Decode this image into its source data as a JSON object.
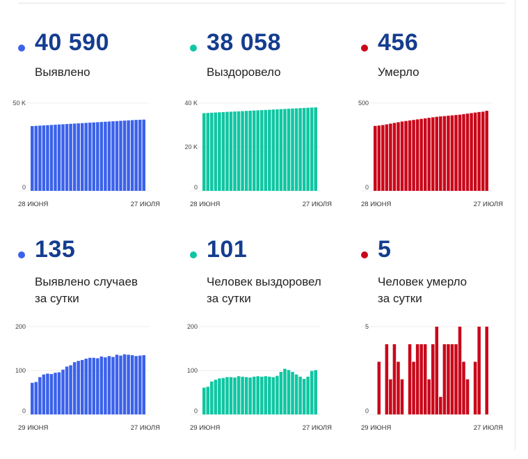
{
  "cards": [
    {
      "value": "40 590",
      "label1": "Выявлено",
      "label2": "",
      "color": "#3b62ea"
    },
    {
      "value": "38 058",
      "label1": "Выздоровело",
      "label2": "",
      "color": "#0fc6a2"
    },
    {
      "value": "456",
      "label1": "Умерло",
      "label2": "",
      "color": "#c9081a"
    },
    {
      "value": "135",
      "label1": "Выявлено случаев",
      "label2": "за сутки",
      "color": "#3b62ea"
    },
    {
      "value": "101",
      "label1": "Человек выздоровел",
      "label2": "за сутки",
      "color": "#0fc6a2"
    },
    {
      "value": "5",
      "label1": "Человек умерло",
      "label2": "за сутки",
      "color": "#c9081a"
    }
  ],
  "chart_data": [
    {
      "type": "bar",
      "color": "#3b62ea",
      "x_start_label": "28 июня",
      "x_end_label": "27 июля",
      "yticks": [
        {
          "v": 0,
          "label": "0"
        },
        {
          "v": 50000,
          "label": "50 K"
        }
      ],
      "ylim": [
        0,
        50000
      ],
      "values": [
        36900,
        37030,
        37160,
        37290,
        37420,
        37550,
        37680,
        37810,
        37940,
        38070,
        38200,
        38330,
        38460,
        38590,
        38720,
        38850,
        38980,
        39110,
        39240,
        39370,
        39500,
        39630,
        39760,
        39890,
        40020,
        40150,
        40280,
        40410,
        40500,
        40590
      ]
    },
    {
      "type": "bar",
      "color": "#0fc6a2",
      "x_start_label": "28 июня",
      "x_end_label": "27 июля",
      "yticks": [
        {
          "v": 0,
          "label": "0"
        },
        {
          "v": 20000,
          "label": "20 K"
        },
        {
          "v": 40000,
          "label": "40 K"
        }
      ],
      "ylim": [
        0,
        40000
      ],
      "values": [
        35400,
        35500,
        35600,
        35700,
        35800,
        35890,
        35980,
        36070,
        36160,
        36250,
        36340,
        36430,
        36520,
        36610,
        36700,
        36790,
        36880,
        36970,
        37060,
        37150,
        37240,
        37330,
        37420,
        37510,
        37600,
        37690,
        37780,
        37870,
        37960,
        38058
      ]
    },
    {
      "type": "bar",
      "color": "#c9081a",
      "x_start_label": "28 июня",
      "x_end_label": "27 июля",
      "yticks": [
        {
          "v": 0,
          "label": "0"
        },
        {
          "v": 500,
          "label": "500"
        }
      ],
      "ylim": [
        0,
        500
      ],
      "values": [
        370,
        372,
        375,
        379,
        383,
        387,
        391,
        395,
        398,
        401,
        404,
        407,
        410,
        413,
        416,
        419,
        422,
        424,
        426,
        428,
        430,
        432,
        434,
        437,
        440,
        443,
        446,
        449,
        451,
        456
      ]
    },
    {
      "type": "bar",
      "color": "#3b62ea",
      "x_start_label": "29 июня",
      "x_end_label": "27 июля",
      "yticks": [
        {
          "v": 0,
          "label": "0"
        },
        {
          "v": 100,
          "label": "100"
        },
        {
          "v": 200,
          "label": "200"
        }
      ],
      "ylim": [
        0,
        200
      ],
      "values": [
        72,
        74,
        85,
        91,
        93,
        92,
        95,
        96,
        102,
        109,
        112,
        119,
        122,
        124,
        127,
        129,
        129,
        128,
        132,
        130,
        133,
        131,
        136,
        134,
        137,
        136,
        135,
        133,
        134,
        135
      ]
    },
    {
      "type": "bar",
      "color": "#0fc6a2",
      "x_start_label": "29 июня",
      "x_end_label": "27 июля",
      "yticks": [
        {
          "v": 0,
          "label": "0"
        },
        {
          "v": 100,
          "label": "100"
        },
        {
          "v": 200,
          "label": "200"
        }
      ],
      "ylim": [
        0,
        200
      ],
      "values": [
        61,
        63,
        75,
        79,
        82,
        83,
        85,
        85,
        84,
        87,
        86,
        85,
        84,
        86,
        87,
        86,
        87,
        86,
        85,
        88,
        97,
        104,
        101,
        97,
        91,
        86,
        81,
        86,
        99,
        101
      ]
    },
    {
      "type": "bar",
      "color": "#c9081a",
      "x_start_label": "29 июня",
      "x_end_label": "27 июля",
      "yticks": [
        {
          "v": 0,
          "label": "0"
        },
        {
          "v": 5,
          "label": "5"
        }
      ],
      "ylim": [
        0,
        5
      ],
      "values": [
        0,
        3,
        0,
        4,
        2,
        4,
        3,
        2,
        0,
        4,
        3,
        4,
        4,
        4,
        2,
        4,
        5,
        1,
        4,
        4,
        4,
        4,
        5,
        3,
        2,
        0,
        3,
        5,
        0,
        5
      ]
    }
  ]
}
